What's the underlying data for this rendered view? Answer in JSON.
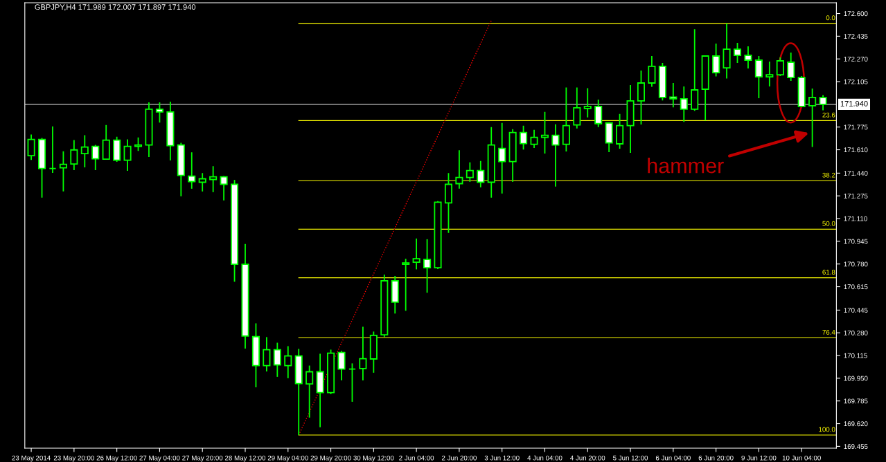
{
  "chart_data": {
    "type": "candlestick",
    "title": "GBPJPY,H4 171.989 172.007 171.897 171.940",
    "categories": [
      "23 May 2014",
      null,
      null,
      null,
      "23 May 20:00",
      null,
      null,
      null,
      "26 May 12:00",
      null,
      null,
      null,
      "27 May 04:00",
      null,
      null,
      null,
      "27 May 20:00",
      null,
      null,
      null,
      "28 May 12:00",
      null,
      null,
      null,
      "29 May 04:00",
      null,
      null,
      null,
      "29 May 20:00",
      null,
      null,
      null,
      "30 May 12:00",
      null,
      null,
      null,
      "2 Jun 04:00",
      null,
      null,
      null,
      "2 Jun 20:00",
      null,
      null,
      null,
      "3 Jun 12:00",
      null,
      null,
      null,
      "4 Jun 04:00",
      null,
      null,
      null,
      "4 Jun 20:00",
      null,
      null,
      null,
      "5 Jun 12:00",
      null,
      null,
      null,
      "6 Jun 04:00",
      null,
      null,
      null,
      "6 Jun 20:00",
      null,
      null,
      null,
      "9 Jun 12:00",
      null,
      null,
      null,
      "10 Jun 04:00",
      null,
      null
    ],
    "ohlc": [
      [
        171.567,
        171.721,
        171.536,
        171.685
      ],
      [
        171.685,
        171.695,
        171.262,
        171.474
      ],
      [
        171.474,
        171.78,
        171.442,
        171.474
      ],
      [
        171.479,
        171.599,
        171.307,
        171.504
      ],
      [
        171.507,
        171.68,
        171.462,
        171.609
      ],
      [
        171.582,
        171.716,
        171.482,
        171.63
      ],
      [
        171.635,
        171.645,
        171.462,
        171.544
      ],
      [
        171.542,
        171.79,
        171.539,
        171.68
      ],
      [
        171.68,
        171.705,
        171.522,
        171.534
      ],
      [
        171.534,
        171.685,
        171.457,
        171.635
      ],
      [
        171.635,
        171.7,
        171.602,
        171.645
      ],
      [
        171.645,
        171.955,
        171.557,
        171.905
      ],
      [
        171.905,
        171.955,
        171.808,
        171.885
      ],
      [
        171.885,
        171.96,
        171.532,
        171.64
      ],
      [
        171.645,
        171.66,
        171.272,
        171.424
      ],
      [
        171.419,
        171.591,
        171.327,
        171.379
      ],
      [
        171.374,
        171.441,
        171.307,
        171.399
      ],
      [
        171.394,
        171.491,
        171.302,
        171.414
      ],
      [
        171.414,
        171.419,
        171.242,
        171.359
      ],
      [
        171.359,
        171.391,
        170.651,
        170.778
      ],
      [
        170.778,
        170.925,
        170.165,
        170.257
      ],
      [
        170.252,
        170.349,
        169.884,
        170.042
      ],
      [
        170.042,
        170.249,
        169.999,
        170.157
      ],
      [
        170.157,
        170.208,
        169.96,
        170.047
      ],
      [
        170.042,
        170.183,
        169.95,
        170.112
      ],
      [
        170.112,
        170.163,
        169.537,
        169.911
      ],
      [
        169.909,
        170.042,
        169.664,
        169.997
      ],
      [
        169.997,
        170.128,
        169.594,
        169.846
      ],
      [
        169.846,
        170.158,
        169.834,
        170.132
      ],
      [
        170.137,
        170.148,
        169.934,
        170.017
      ],
      [
        170.017,
        170.058,
        169.779,
        170.017
      ],
      [
        170.02,
        170.324,
        169.934,
        170.092
      ],
      [
        170.09,
        170.289,
        169.99,
        170.262
      ],
      [
        170.265,
        170.703,
        170.25,
        170.658
      ],
      [
        170.658,
        170.693,
        170.42,
        170.503
      ],
      [
        170.778,
        170.818,
        170.44,
        170.788
      ],
      [
        170.793,
        170.965,
        170.741,
        170.818
      ],
      [
        170.813,
        170.96,
        170.571,
        170.753
      ],
      [
        170.753,
        171.237,
        170.743,
        171.229
      ],
      [
        171.224,
        171.441,
        171.006,
        171.359
      ],
      [
        171.364,
        171.606,
        171.327,
        171.409
      ],
      [
        171.409,
        171.519,
        171.377,
        171.459
      ],
      [
        171.459,
        171.529,
        171.337,
        171.374
      ],
      [
        171.374,
        171.775,
        171.262,
        171.645
      ],
      [
        171.62,
        171.805,
        171.292,
        171.524
      ],
      [
        171.524,
        171.76,
        171.377,
        171.735
      ],
      [
        171.735,
        171.785,
        171.612,
        171.655
      ],
      [
        171.65,
        171.755,
        171.623,
        171.7
      ],
      [
        171.7,
        171.885,
        171.582,
        171.715
      ],
      [
        171.715,
        171.795,
        171.342,
        171.645
      ],
      [
        171.65,
        172.062,
        171.597,
        171.785
      ],
      [
        171.79,
        172.062,
        171.765,
        171.915
      ],
      [
        171.91,
        172.057,
        171.845,
        171.925
      ],
      [
        171.925,
        171.975,
        171.775,
        171.8
      ],
      [
        171.805,
        171.805,
        171.592,
        171.66
      ],
      [
        171.653,
        171.87,
        171.618,
        171.785
      ],
      [
        171.785,
        172.08,
        171.587,
        171.965
      ],
      [
        171.965,
        172.186,
        171.793,
        172.095
      ],
      [
        172.095,
        172.291,
        172.068,
        172.216
      ],
      [
        172.216,
        172.241,
        171.968,
        171.99
      ],
      [
        171.993,
        172.095,
        171.918,
        171.98
      ],
      [
        171.98,
        172.07,
        171.813,
        171.905
      ],
      [
        171.905,
        172.486,
        171.893,
        172.045
      ],
      [
        172.05,
        172.296,
        171.823,
        172.291
      ],
      [
        172.291,
        172.381,
        172.143,
        172.17
      ],
      [
        172.205,
        172.528,
        172.128,
        172.341
      ],
      [
        172.341,
        172.386,
        172.241,
        172.296
      ],
      [
        172.296,
        172.361,
        172.201,
        172.261
      ],
      [
        172.261,
        172.291,
        171.985,
        172.14
      ],
      [
        172.14,
        172.251,
        172.07,
        172.155
      ],
      [
        172.155,
        172.281,
        172.145,
        172.256
      ],
      [
        172.246,
        172.316,
        172.11,
        172.135
      ],
      [
        172.135,
        172.145,
        171.925,
        171.925
      ],
      [
        171.93,
        172.055,
        171.63,
        171.99
      ],
      [
        171.989,
        172.007,
        171.897,
        171.94
      ]
    ],
    "color": "#00ff00",
    "colors": [
      "#000000",
      "#ffffff",
      "#00ff00",
      "#000000",
      "#000000",
      "#000000",
      "#ffffff",
      "#000000",
      "#ffffff",
      "#000000",
      "#000000",
      "#000000",
      "#ffffff",
      "#ffffff",
      "#ffffff",
      "#ffffff",
      "#000000",
      "#000000",
      "#ffffff",
      "#ffffff",
      "#ffffff",
      "#ffffff",
      "#000000",
      "#ffffff",
      "#000000",
      "#ffffff",
      "#000000",
      "#ffffff",
      "#000000",
      "#ffffff",
      "#00ff00",
      "#000000",
      "#000000",
      "#000000",
      "#ffffff",
      "#000000",
      "#000000",
      "#ffffff",
      "#000000",
      "#000000",
      "#000000",
      "#000000",
      "#ffffff",
      "#000000",
      "#ffffff",
      "#000000",
      "#ffffff",
      "#000000",
      "#000000",
      "#ffffff",
      "#000000",
      "#000000",
      "#000000",
      "#ffffff",
      "#ffffff",
      "#000000",
      "#000000",
      "#000000",
      "#000000",
      "#ffffff",
      "#ffffff",
      "#ffffff",
      "#000000",
      "#000000",
      "#ffffff",
      "#000000",
      "#ffffff",
      "#ffffff",
      "#ffffff",
      "#000000",
      "#000000",
      "#ffffff",
      "#ffffff",
      "#000000",
      "#ffffff"
    ],
    "series": [
      {
        "type": "line",
        "values": [
          null,
          null,
          null,
          null,
          null,
          null,
          null,
          null,
          null,
          null,
          null,
          null,
          null,
          null,
          null,
          null,
          null,
          null,
          null,
          null,
          null,
          null,
          null,
          null,
          null,
          169.537,
          null,
          null,
          null,
          null,
          null,
          null,
          null,
          null,
          null,
          null,
          null,
          null,
          null,
          null,
          null,
          null,
          null,
          172.549,
          null,
          null,
          null,
          null,
          null,
          null,
          null,
          null,
          null,
          null,
          null,
          null,
          null,
          null,
          null,
          null,
          null,
          null,
          null,
          null,
          null,
          null,
          null,
          null,
          null,
          null,
          null,
          null,
          null,
          null,
          null
        ],
        "color": "#ff0000",
        "line_style": "dotted"
      }
    ],
    "ylim": [
      169.442,
      172.678
    ],
    "yticks": [
      {
        "value": 172.6,
        "label": "172.600"
      },
      {
        "value": 172.435,
        "label": "172.435"
      },
      {
        "value": 172.27,
        "label": "172.270"
      },
      {
        "value": 172.105,
        "label": "172.105"
      },
      {
        "value": 171.775,
        "label": "171.775"
      },
      {
        "value": 171.61,
        "label": "171.610"
      },
      {
        "value": 171.44,
        "label": "171.440"
      },
      {
        "value": 171.275,
        "label": "171.275"
      },
      {
        "value": 171.11,
        "label": "171.110"
      },
      {
        "value": 170.945,
        "label": "170.945"
      },
      {
        "value": 170.78,
        "label": "170.780"
      },
      {
        "value": 170.615,
        "label": "170.615"
      },
      {
        "value": 170.445,
        "label": "170.445"
      },
      {
        "value": 170.28,
        "label": "170.280"
      },
      {
        "value": 170.115,
        "label": "170.115"
      },
      {
        "value": 169.95,
        "label": "169.950"
      },
      {
        "value": 169.785,
        "label": "169.785"
      },
      {
        "value": 169.62,
        "label": "169.620"
      },
      {
        "value": 169.455,
        "label": "169.455"
      }
    ],
    "ref_lines": [
      {
        "axis": "y",
        "value": 171.94,
        "label": "171.940",
        "color": "#c0c0c0"
      },
      {
        "axis": "y",
        "value": 172.528,
        "color": "#ffff00"
      },
      {
        "axis": "y",
        "value": 171.822,
        "color": "#ffff00"
      },
      {
        "axis": "y",
        "value": 171.385,
        "color": "#ffff00"
      },
      {
        "axis": "y",
        "value": 171.033,
        "color": "#ffff00"
      },
      {
        "axis": "y",
        "value": 170.68,
        "color": "#ffff00"
      },
      {
        "axis": "y",
        "value": 170.243,
        "color": "#ffff00"
      },
      {
        "axis": "y",
        "value": 169.537,
        "color": "#ffff00"
      }
    ],
    "annotations": [
      "hammer",
      {
        "text": "0.0",
        "y": 172.528
      },
      {
        "text": "23.6",
        "y": 171.822
      },
      {
        "text": "38.2",
        "y": 171.385
      },
      {
        "text": "50.0",
        "y": 171.033
      },
      {
        "text": "61.8",
        "y": 170.68
      },
      {
        "text": "76.4",
        "y": 170.243
      },
      {
        "text": "100.0",
        "y": 169.537
      }
    ]
  }
}
